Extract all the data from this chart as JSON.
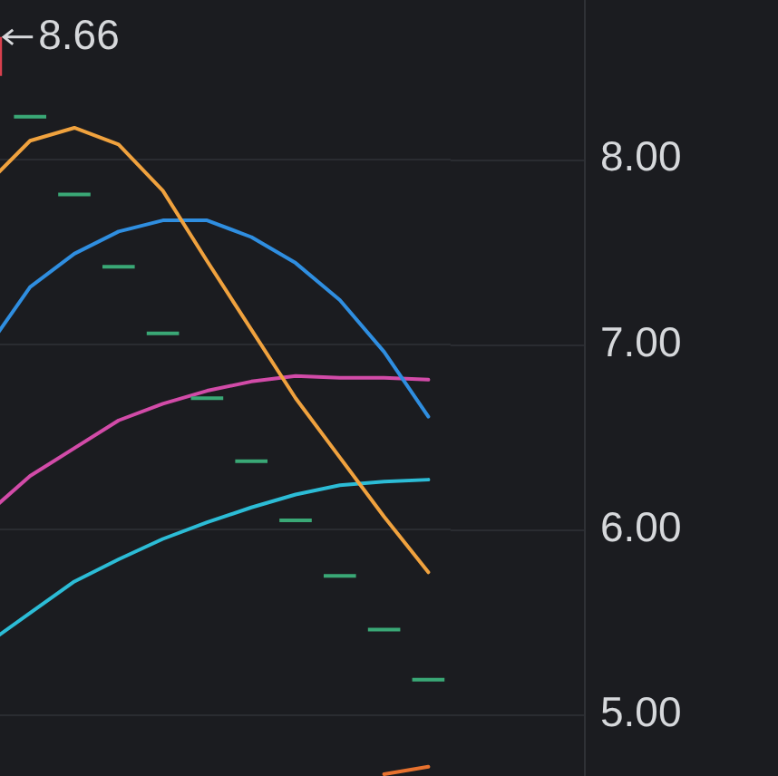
{
  "chart_data": {
    "type": "candlestick",
    "categories": [
      null,
      null,
      null,
      null,
      null,
      null,
      null,
      null,
      null,
      null,
      null
    ],
    "ohlc": [
      [
        8.66,
        8.66,
        8.45,
        8.45
      ],
      [
        8.23,
        8.23,
        8.23,
        8.23
      ],
      [
        7.81,
        7.81,
        7.81,
        7.81
      ],
      [
        7.42,
        7.42,
        7.42,
        7.42
      ],
      [
        7.06,
        7.06,
        7.06,
        7.06
      ],
      [
        6.71,
        6.71,
        6.71,
        6.71
      ],
      [
        6.37,
        6.37,
        6.37,
        6.37
      ],
      [
        6.05,
        6.05,
        6.05,
        6.05
      ],
      [
        5.75,
        5.75,
        5.75,
        5.75
      ],
      [
        5.46,
        5.46,
        5.46,
        5.46
      ],
      [
        5.19,
        5.19,
        5.19,
        5.19
      ]
    ],
    "colors": [
      "#d9404e",
      "#3aa876",
      "#3aa876",
      "#3aa876",
      "#3aa876",
      "#3aa876",
      "#3aa876",
      "#3aa876",
      "#3aa876",
      "#3aa876",
      "#3aa876"
    ],
    "series": [
      {
        "type": "line",
        "color": "#f0a23e",
        "values": [
          7.86,
          8.1,
          8.17,
          8.08,
          7.83,
          7.45,
          7.08,
          6.71,
          6.39,
          6.07,
          5.77
        ]
      },
      {
        "type": "line",
        "color": "#2f8ee0",
        "values": [
          6.97,
          7.31,
          7.49,
          7.61,
          7.67,
          7.67,
          7.58,
          7.44,
          7.24,
          6.96,
          6.61
        ]
      },
      {
        "type": "line",
        "color": "#d24ba8",
        "values": [
          6.08,
          6.29,
          6.44,
          6.59,
          6.68,
          6.75,
          6.8,
          6.83,
          6.82,
          6.82,
          6.81
        ]
      },
      {
        "type": "line",
        "color": "#2cbcd6",
        "values": [
          5.38,
          5.55,
          5.72,
          5.84,
          5.95,
          6.04,
          6.12,
          6.19,
          6.24,
          6.26,
          6.27
        ]
      },
      {
        "type": "line",
        "color": "#e8722f",
        "values": [
          null,
          null,
          null,
          null,
          null,
          null,
          null,
          null,
          null,
          4.68,
          4.72
        ]
      }
    ],
    "ylim": [
      4.67,
      8.86
    ],
    "yticks": [
      {
        "value": 5,
        "label": "5.00"
      },
      {
        "value": 6,
        "label": "6.00"
      },
      {
        "value": 7,
        "label": "7.00"
      },
      {
        "value": 8,
        "label": "8.00"
      }
    ],
    "annotations": [
      "8.66"
    ],
    "grid": "y",
    "tick_labels": "y"
  }
}
